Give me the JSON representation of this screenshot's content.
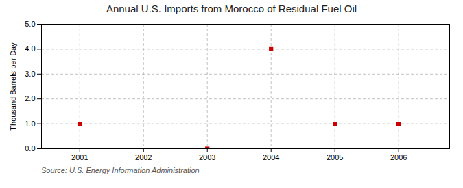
{
  "chart_data": {
    "type": "scatter",
    "title": "Annual U.S. Imports from Morocco of Residual Fuel Oil",
    "ylabel": "Thousand Barrels per Day",
    "source": "Source: U.S. Energy Information Administration",
    "x": [
      2001,
      2003,
      2004,
      2005,
      2006
    ],
    "values": [
      1.0,
      0.0,
      4.0,
      1.0,
      1.0
    ],
    "color": "#cc0000",
    "marker": "square",
    "xlim": [
      2000.4,
      2006.8
    ],
    "xticks": [
      2001,
      2002,
      2003,
      2004,
      2005,
      2006
    ],
    "ylim": [
      0.0,
      5.0
    ],
    "yticks": [
      {
        "value": 0.0,
        "label": "0.0"
      },
      {
        "value": 1.0,
        "label": "1.0"
      },
      {
        "value": 2.0,
        "label": "2.0"
      },
      {
        "value": 3.0,
        "label": "3.0"
      },
      {
        "value": 4.0,
        "label": "4.0"
      },
      {
        "value": 5.0,
        "label": "5.0"
      }
    ],
    "grid": true
  }
}
